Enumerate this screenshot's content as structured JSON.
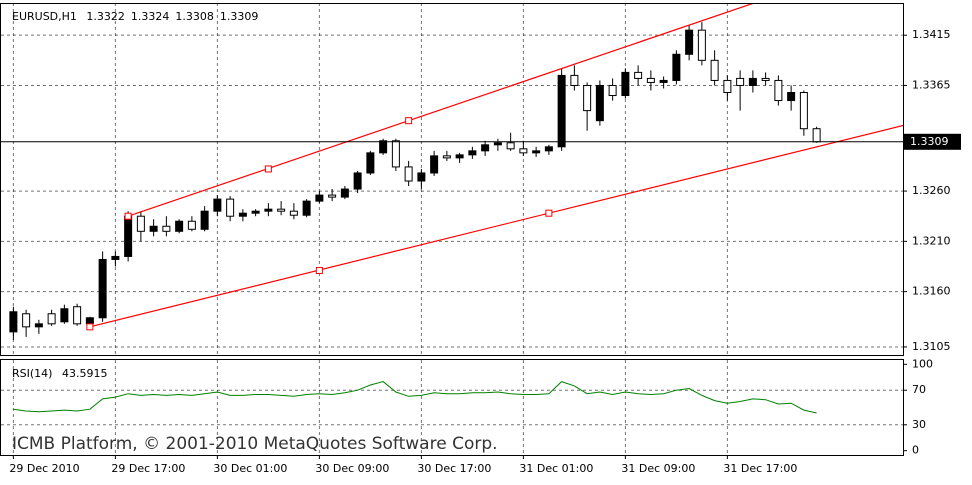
{
  "chart_data": {
    "type": "candlestick",
    "symbol": "EURUSD,H1",
    "open": [
      1.312,
      1.3138,
      1.3125,
      1.3138,
      1.313,
      1.3145,
      1.3128,
      1.3134,
      1.3192,
      1.3195,
      1.3235,
      1.322,
      1.3225,
      1.322,
      1.323,
      1.3222,
      1.324,
      1.3252,
      1.3235,
      1.3238,
      1.324,
      1.3242,
      1.324,
      1.3236,
      1.325,
      1.3256,
      1.3254,
      1.3262,
      1.3278,
      1.3298,
      1.331,
      1.3284,
      1.327,
      1.3278,
      1.3295,
      1.3293,
      1.3296,
      1.33,
      1.3306,
      1.3308,
      1.3302,
      1.3298,
      1.33,
      1.3304,
      1.3375,
      1.3365,
      1.333,
      1.3365,
      1.3355,
      1.3378,
      1.3372,
      1.3368,
      1.337,
      1.3396,
      1.342,
      1.339,
      1.337,
      1.3372,
      1.3365,
      1.3372,
      1.337,
      1.335,
      1.3358,
      1.3322
    ],
    "high": [
      1.3145,
      1.3142,
      1.3132,
      1.3142,
      1.3147,
      1.3148,
      1.3135,
      1.32,
      1.32,
      1.324,
      1.324,
      1.3232,
      1.3235,
      1.3232,
      1.3235,
      1.3245,
      1.3256,
      1.3255,
      1.3242,
      1.3242,
      1.3248,
      1.325,
      1.3248,
      1.3252,
      1.326,
      1.3262,
      1.3265,
      1.328,
      1.33,
      1.3312,
      1.3312,
      1.329,
      1.3282,
      1.33,
      1.33,
      1.3298,
      1.3304,
      1.331,
      1.3312,
      1.3318,
      1.331,
      1.3304,
      1.3306,
      1.3382,
      1.3385,
      1.3368,
      1.337,
      1.3372,
      1.3382,
      1.3385,
      1.338,
      1.3374,
      1.34,
      1.3425,
      1.3428,
      1.34,
      1.3375,
      1.338,
      1.338,
      1.3378,
      1.3375,
      1.3365,
      1.336,
      1.3324
    ],
    "low": [
      1.3112,
      1.3115,
      1.3118,
      1.3126,
      1.3128,
      1.3126,
      1.3125,
      1.313,
      1.3185,
      1.319,
      1.321,
      1.3215,
      1.3215,
      1.3218,
      1.322,
      1.322,
      1.3235,
      1.323,
      1.323,
      1.3235,
      1.3235,
      1.3236,
      1.3232,
      1.3234,
      1.3248,
      1.325,
      1.3252,
      1.3258,
      1.3276,
      1.3296,
      1.328,
      1.3265,
      1.3262,
      1.3275,
      1.329,
      1.3288,
      1.3292,
      1.3295,
      1.33,
      1.33,
      1.3295,
      1.3294,
      1.3296,
      1.33,
      1.336,
      1.332,
      1.3325,
      1.335,
      1.3352,
      1.3365,
      1.336,
      1.3362,
      1.3366,
      1.339,
      1.3385,
      1.3365,
      1.335,
      1.334,
      1.3358,
      1.3365,
      1.3345,
      1.334,
      1.3315,
      1.3308
    ],
    "close": [
      1.314,
      1.3125,
      1.3128,
      1.3128,
      1.3143,
      1.3128,
      1.3134,
      1.3192,
      1.3195,
      1.3235,
      1.322,
      1.3225,
      1.322,
      1.323,
      1.3222,
      1.324,
      1.3252,
      1.3235,
      1.3238,
      1.324,
      1.3242,
      1.324,
      1.3236,
      1.325,
      1.3256,
      1.3254,
      1.3262,
      1.3278,
      1.3298,
      1.331,
      1.3284,
      1.327,
      1.3278,
      1.3295,
      1.3293,
      1.3296,
      1.33,
      1.3306,
      1.3308,
      1.3302,
      1.3298,
      1.33,
      1.3304,
      1.3375,
      1.3365,
      1.334,
      1.3365,
      1.3355,
      1.3378,
      1.3372,
      1.3368,
      1.337,
      1.3396,
      1.342,
      1.339,
      1.337,
      1.3358,
      1.3365,
      1.3372,
      1.337,
      1.335,
      1.3358,
      1.3322,
      1.3309
    ],
    "ylim": [
      1.3097,
      1.3447
    ],
    "yticks": [
      1.3415,
      1.3365,
      {
        "value": 1.326,
        "label": "1.3260"
      },
      {
        "value": 1.321,
        "label": "1.3210"
      },
      {
        "value": 1.316,
        "label": "1.3160"
      },
      1.3105
    ],
    "xticks": [
      {
        "value": 0,
        "label": "29 Dec 2010"
      },
      {
        "value": 8,
        "label": "29 Dec 17:00"
      },
      {
        "value": 16,
        "label": "30 Dec 01:00"
      },
      {
        "value": 24,
        "label": "30 Dec 09:00"
      },
      {
        "value": 32,
        "label": "30 Dec 17:00"
      },
      {
        "value": 40,
        "label": "31 Dec 01:00"
      },
      {
        "value": 48,
        "label": "31 Dec 09:00"
      },
      {
        "value": 56,
        "label": "31 Dec 17:00"
      }
    ],
    "grid": true,
    "channel": {
      "color": "#ff0000",
      "lines": [
        {
          "points": [
            {
              "x": 9,
              "y": 1.3235
            },
            {
              "x": 20,
              "y": 1.3282
            },
            {
              "x": 31,
              "y": 1.333
            }
          ]
        },
        {
          "points": [
            {
              "x": 6,
              "y": 1.3125
            },
            {
              "x": 24,
              "y": 1.3181
            },
            {
              "x": 42,
              "y": 1.3238
            }
          ]
        }
      ]
    },
    "indicator": {
      "name": "RSI(14)",
      "color": "#008000",
      "values": [
        48,
        46,
        45,
        46,
        47,
        46,
        48,
        60,
        62,
        66,
        64,
        65,
        64,
        65,
        64,
        66,
        68,
        64,
        64,
        65,
        65,
        64,
        63,
        65,
        66,
        65,
        67,
        70,
        76,
        80,
        68,
        63,
        64,
        67,
        66,
        66,
        67,
        67,
        68,
        66,
        65,
        65,
        66,
        80,
        75,
        66,
        68,
        65,
        68,
        66,
        65,
        66,
        70,
        72,
        64,
        58,
        55,
        57,
        60,
        59,
        54,
        55,
        47,
        43.5915
      ],
      "ylim": [
        -5,
        105
      ],
      "yticks": [
        100,
        70,
        30,
        0
      ],
      "levels": [
        70,
        30
      ]
    },
    "copyright": "ICMB Platform, © 2001-2010 MetaQuotes Software Corp."
  }
}
